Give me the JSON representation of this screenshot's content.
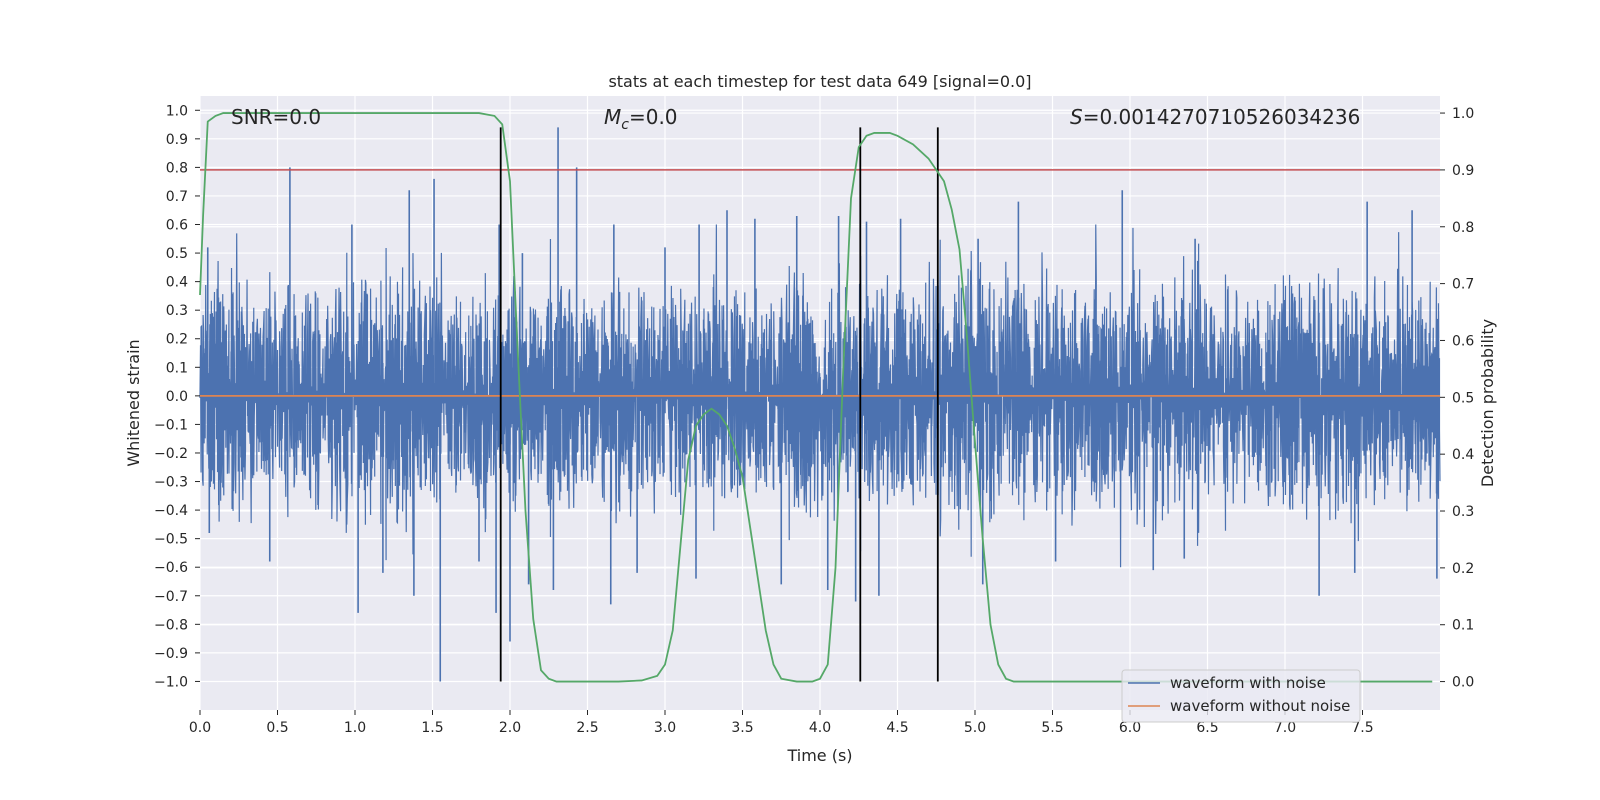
{
  "chart_data": {
    "type": "line",
    "title": "stats at each timestep for test data 649 [signal=0.0]",
    "xlabel": "Time (s)",
    "ylabel": "Whitened strain",
    "ylabel_right": "Detection probability",
    "xlim": [
      0.0,
      8.0
    ],
    "ylim": [
      -1.1,
      1.05
    ],
    "ylim_right": [
      -0.05,
      1.03
    ],
    "x_ticks": [
      0.0,
      0.5,
      1.0,
      1.5,
      2.0,
      2.5,
      3.0,
      3.5,
      4.0,
      4.5,
      5.0,
      5.5,
      6.0,
      6.5,
      7.0,
      7.5
    ],
    "x_tick_labels": [
      "0.0",
      "0.5",
      "1.0",
      "1.5",
      "2.0",
      "2.5",
      "3.0",
      "3.5",
      "4.0",
      "4.5",
      "5.0",
      "5.5",
      "6.0",
      "6.5",
      "7.0",
      "7.5"
    ],
    "y_ticks": [
      1.0,
      0.9,
      0.8,
      0.7,
      0.6,
      0.5,
      0.4,
      0.3,
      0.2,
      0.1,
      0.0,
      -0.1,
      -0.2,
      -0.3,
      -0.4,
      -0.5,
      -0.6,
      -0.7,
      -0.8,
      -0.9,
      -1.0
    ],
    "y_tick_labels": [
      "1.0",
      "0.9",
      "0.8",
      "0.7",
      "0.6",
      "0.5",
      "0.4",
      "0.3",
      "0.2",
      "0.1",
      "0.0",
      "−0.1",
      "−0.2",
      "−0.3",
      "−0.4",
      "−0.5",
      "−0.6",
      "−0.7",
      "−0.8",
      "−0.9",
      "−1.0"
    ],
    "y_right_ticks": [
      1.0,
      0.9,
      0.8,
      0.7,
      0.6,
      0.5,
      0.4,
      0.3,
      0.2,
      0.1,
      0.0
    ],
    "y_right_tick_labels": [
      "1.0",
      "0.9",
      "0.8",
      "0.7",
      "0.6",
      "0.5",
      "0.4",
      "0.3",
      "0.2",
      "0.1",
      "0.0"
    ],
    "grid": true,
    "legend_position": "bottom-right",
    "annotations": {
      "snr": "SNR=0.0",
      "mc_symbol": "M",
      "mc_sub": "c",
      "mc_value": "=0.0",
      "s_symbol": "S",
      "s_value": "=0.0014270710526034236"
    },
    "series": [
      {
        "name": "waveform with noise",
        "color": "#4c72b0",
        "note_noise_envelope": {
          "x_range": [
            0.0,
            8.0
          ],
          "typical_amplitude": 0.33
        },
        "spikes": [
          [
            0.05,
            0.52
          ],
          [
            0.58,
            0.8
          ],
          [
            0.98,
            0.6
          ],
          [
            1.35,
            0.72
          ],
          [
            1.51,
            0.76
          ],
          [
            1.93,
            0.6
          ],
          [
            2.08,
            0.5
          ],
          [
            2.31,
            0.94
          ],
          [
            2.43,
            0.8
          ],
          [
            2.67,
            0.6
          ],
          [
            3.0,
            0.52
          ],
          [
            3.22,
            0.6
          ],
          [
            3.4,
            0.65
          ],
          [
            3.58,
            0.62
          ],
          [
            3.85,
            0.63
          ],
          [
            4.12,
            0.63
          ],
          [
            4.3,
            0.61
          ],
          [
            4.52,
            0.62
          ],
          [
            5.02,
            0.55
          ],
          [
            5.28,
            0.68
          ],
          [
            5.95,
            0.72
          ],
          [
            6.42,
            0.55
          ],
          [
            7.53,
            0.68
          ],
          [
            7.82,
            0.65
          ],
          [
            0.06,
            -0.48
          ],
          [
            0.45,
            -0.58
          ],
          [
            1.02,
            -0.76
          ],
          [
            1.18,
            -0.62
          ],
          [
            1.38,
            -0.7
          ],
          [
            1.55,
            -1.0
          ],
          [
            1.8,
            -0.58
          ],
          [
            1.91,
            -0.76
          ],
          [
            2.0,
            -0.86
          ],
          [
            2.12,
            -0.66
          ],
          [
            2.28,
            -0.68
          ],
          [
            2.65,
            -0.73
          ],
          [
            2.82,
            -0.62
          ],
          [
            3.2,
            -0.64
          ],
          [
            3.75,
            -0.66
          ],
          [
            4.05,
            -0.68
          ],
          [
            4.23,
            -0.72
          ],
          [
            4.38,
            -0.7
          ],
          [
            5.05,
            -0.66
          ],
          [
            5.52,
            -0.58
          ],
          [
            6.15,
            -0.61
          ],
          [
            6.35,
            -0.57
          ],
          [
            7.22,
            -0.7
          ],
          [
            7.45,
            -0.62
          ],
          [
            7.98,
            -0.64
          ]
        ]
      },
      {
        "name": "waveform without noise",
        "color": "#dd8452",
        "x": [
          0.0,
          8.0
        ],
        "y": [
          0.0,
          0.0
        ]
      },
      {
        "name": "",
        "color": "#55a868",
        "axis": "right",
        "x": [
          0.0,
          0.02,
          0.05,
          0.1,
          0.15,
          0.3,
          0.5,
          1.0,
          1.5,
          1.8,
          1.9,
          1.95,
          2.0,
          2.05,
          2.1,
          2.15,
          2.2,
          2.25,
          2.3,
          2.5,
          2.7,
          2.85,
          2.95,
          3.0,
          3.05,
          3.1,
          3.15,
          3.2,
          3.25,
          3.3,
          3.35,
          3.4,
          3.45,
          3.5,
          3.55,
          3.6,
          3.65,
          3.7,
          3.75,
          3.85,
          3.95,
          4.0,
          4.05,
          4.1,
          4.15,
          4.2,
          4.25,
          4.3,
          4.35,
          4.4,
          4.45,
          4.5,
          4.6,
          4.7,
          4.75,
          4.8,
          4.85,
          4.9,
          4.95,
          5.0,
          5.05,
          5.1,
          5.15,
          5.2,
          5.25,
          5.3,
          5.6,
          6.0,
          7.0,
          7.5,
          7.95
        ],
        "y": [
          0.68,
          0.82,
          0.985,
          0.995,
          1.0,
          1.0,
          1.0,
          1.0,
          1.0,
          1.0,
          0.995,
          0.98,
          0.88,
          0.58,
          0.3,
          0.11,
          0.02,
          0.005,
          0.0,
          0.0,
          0.0,
          0.002,
          0.01,
          0.03,
          0.09,
          0.24,
          0.39,
          0.45,
          0.47,
          0.48,
          0.47,
          0.45,
          0.41,
          0.36,
          0.27,
          0.18,
          0.09,
          0.03,
          0.005,
          0.0,
          0.0,
          0.005,
          0.03,
          0.2,
          0.55,
          0.85,
          0.94,
          0.96,
          0.965,
          0.965,
          0.965,
          0.96,
          0.945,
          0.92,
          0.9,
          0.88,
          0.83,
          0.76,
          0.6,
          0.42,
          0.25,
          0.1,
          0.03,
          0.005,
          0.0,
          0.0,
          0.0,
          0.0,
          0.0,
          0.0,
          0.0
        ]
      }
    ],
    "threshold": {
      "axis": "right",
      "value": 0.9,
      "color": "#c44e52"
    },
    "vertical_lines": {
      "x": [
        1.94,
        4.26,
        4.76
      ],
      "color": "#000000",
      "y_range": [
        -1.0,
        0.94
      ]
    }
  }
}
